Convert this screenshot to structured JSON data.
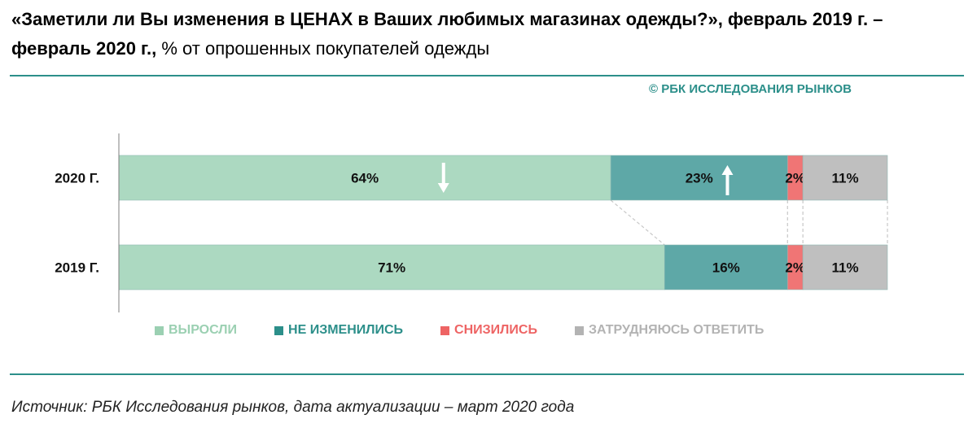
{
  "header": {
    "title_bold": "«Заметили ли Вы изменения в ЦЕНАХ в Ваших любимых магазинах одежды?», февраль 2019 г. – февраль 2020 г.,",
    "title_regular": " % от опрошенных покупателей одежды",
    "copyright": "© РБК ИССЛЕДОВАНИЯ РЫНКОВ"
  },
  "chart_data": {
    "type": "bar",
    "orientation": "horizontal",
    "stacked": true,
    "categories": [
      "2020 Г.",
      "2019 Г."
    ],
    "series": [
      {
        "name": "ВЫРОСЛИ",
        "values": [
          64,
          71
        ],
        "labels": [
          "64%",
          "71%"
        ],
        "color": "#acd9c1",
        "legend_color": "#9bd0b2"
      },
      {
        "name": "НЕ ИЗМЕНИЛИСЬ",
        "values": [
          23,
          16
        ],
        "labels": [
          "23%",
          "16%"
        ],
        "color": "#5ea8a7",
        "legend_color": "#2c8f8a"
      },
      {
        "name": "СНИЗИЛИСЬ",
        "values": [
          2,
          2
        ],
        "labels": [
          "2%",
          "2%"
        ],
        "color": "#f07575",
        "legend_color": "#ee6464"
      },
      {
        "name": "ЗАТРУДНЯЮСЬ ОТВЕТИТЬ",
        "values": [
          11,
          11
        ],
        "labels": [
          "11%",
          "11%"
        ],
        "color": "#bfbfbf",
        "legend_color": "#b3b3b3"
      }
    ],
    "trend_arrows": [
      {
        "category": "2020 Г.",
        "series": "ВЫРОСЛИ",
        "direction": "down"
      },
      {
        "category": "2020 Г.",
        "series": "НЕ ИЗМЕНИЛИСЬ",
        "direction": "up"
      }
    ],
    "connector_lines": true,
    "xlim": [
      0,
      100
    ]
  },
  "footer": {
    "source": "Источник: РБК Исследования рынков, дата актуализации – март 2020 года"
  }
}
